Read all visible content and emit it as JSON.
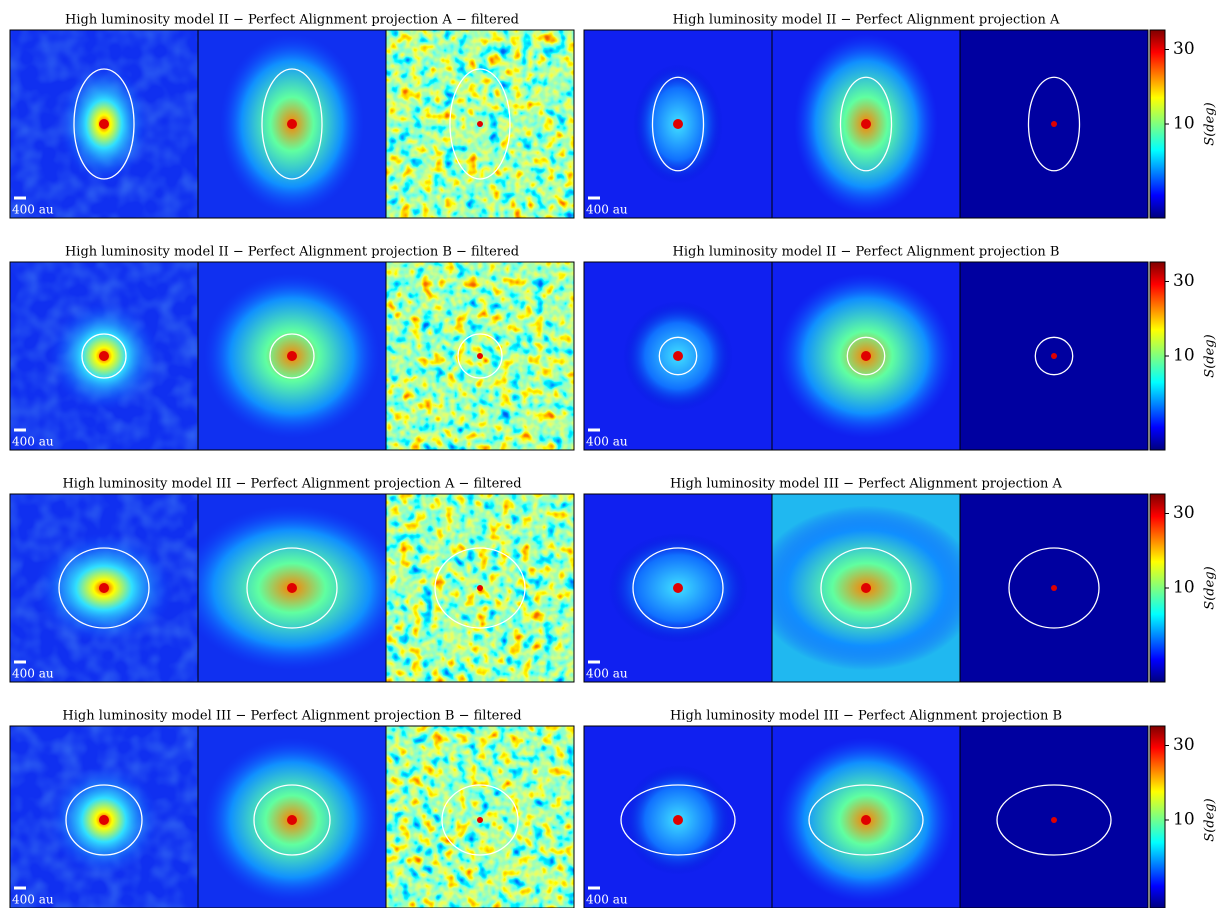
{
  "figure": {
    "rows": [
      {
        "left_title": "High luminosity model II − Perfect Alignment projection A − filtered",
        "right_title": "High luminosity model II − Perfect Alignment projection A"
      },
      {
        "left_title": "High luminosity model II − Perfect Alignment projection B − filtered",
        "right_title": "High luminosity model II − Perfect Alignment projection B"
      },
      {
        "left_title": "High luminosity model III − Perfect Alignment projection A − filtered",
        "right_title": "High luminosity model III − Perfect Alignment projection A"
      },
      {
        "left_title": "High luminosity model III − Perfect Alignment projection B − filtered",
        "right_title": "High luminosity model III − Perfect Alignment projection B"
      }
    ],
    "scale_label": "400 au",
    "colorbar": {
      "label": "S(deg)",
      "scale": "log",
      "lim": [
        2.5,
        40
      ],
      "ticks": [
        10,
        30
      ]
    }
  }
}
